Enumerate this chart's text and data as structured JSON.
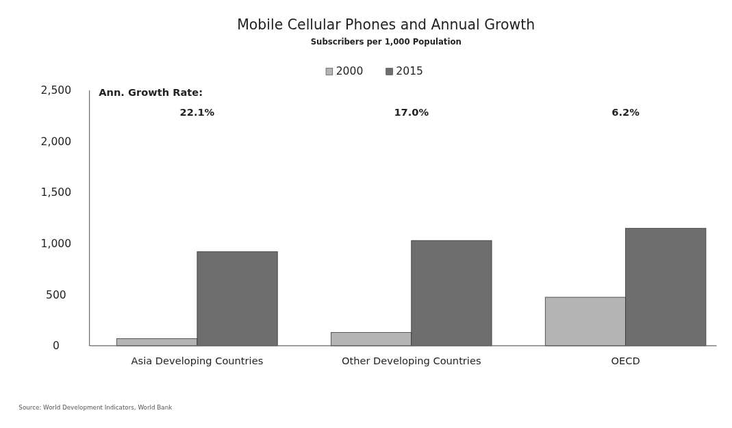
{
  "chart_data": {
    "type": "bar",
    "title": "Mobile Cellular Phones and Annual Growth",
    "subtitle": "Subscribers per 1,000 Population",
    "categories": [
      "Asia Developing Countries",
      "Other Developing Countries",
      "OECD"
    ],
    "series": [
      {
        "name": "2000",
        "color": "#b4b4b4",
        "values": [
          70,
          130,
          475
        ]
      },
      {
        "name": "2015",
        "color": "#6e6e6e",
        "values": [
          920,
          1030,
          1150
        ]
      }
    ],
    "ylim": [
      0,
      2500
    ],
    "yticks": [
      0,
      {
        "value": 500,
        "label": "500"
      },
      {
        "value": 1000,
        "label": "1,000"
      },
      {
        "value": 1500,
        "label": "1,500"
      },
      {
        "value": 2000,
        "label": "2,000"
      },
      {
        "value": 2500,
        "label": "2,500"
      }
    ],
    "grid": false,
    "legend": "top",
    "annotations": [
      "Ann. Growth Rate:",
      "22.1%",
      "17.0%",
      "6.2%",
      "Source: World Development Indicators, World Bank"
    ]
  }
}
